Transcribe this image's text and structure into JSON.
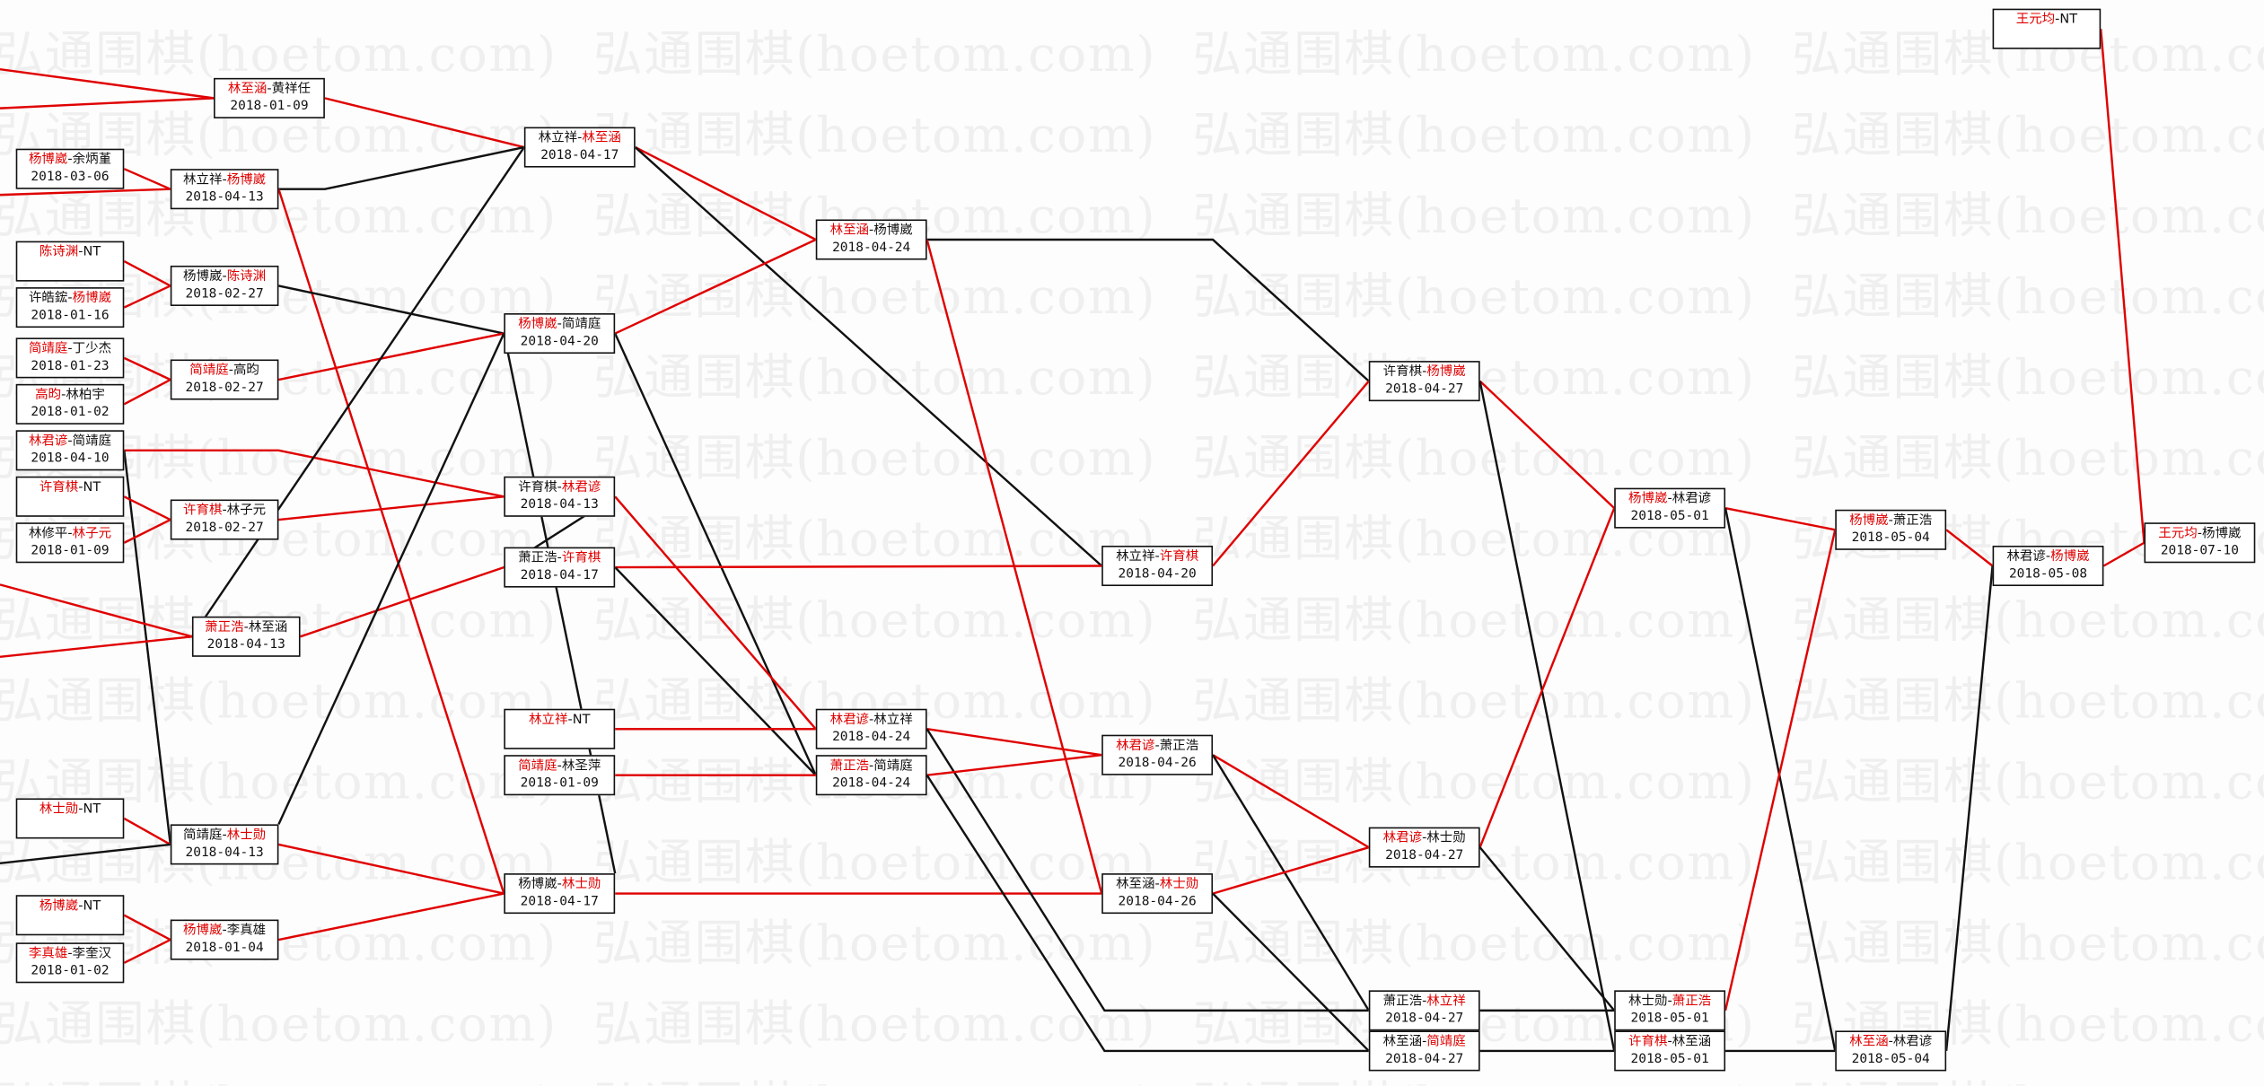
{
  "watermark": "弘通围棋(hoetom.com)",
  "colors": {
    "win": "#e00000",
    "loss": "#111111",
    "box_border": "#111111"
  },
  "nodes": [
    {
      "id": "A",
      "p1": "林至涵",
      "p2": "黄祥任",
      "date": "2018-01-09",
      "winner": 1
    },
    {
      "id": "B",
      "p1": "杨博崴",
      "p2": "余炳堇",
      "date": "2018-03-06",
      "winner": 1
    },
    {
      "id": "C",
      "p1": "林立祥",
      "p2": "杨博崴",
      "date": "2018-04-13",
      "winner": 2
    },
    {
      "id": "D",
      "p1": "林立祥",
      "p2": "林至涵",
      "date": "2018-04-17",
      "winner": 2
    },
    {
      "id": "E",
      "p1": "陈诗渊",
      "p2": "NT",
      "date": "",
      "winner": 1
    },
    {
      "id": "F",
      "p1": "许皓鋐",
      "p2": "杨博崴",
      "date": "2018-01-16",
      "winner": 2
    },
    {
      "id": "G",
      "p1": "杨博崴",
      "p2": "陈诗渊",
      "date": "2018-02-27",
      "winner": 2
    },
    {
      "id": "H",
      "p1": "杨博崴",
      "p2": "简靖庭",
      "date": "2018-04-20",
      "winner": 1
    },
    {
      "id": "J",
      "p1": "简靖庭",
      "p2": "丁少杰",
      "date": "2018-01-23",
      "winner": 1
    },
    {
      "id": "K",
      "p1": "高昀",
      "p2": "林柏宇",
      "date": "2018-01-02",
      "winner": 1
    },
    {
      "id": "I",
      "p1": "简靖庭",
      "p2": "高昀",
      "date": "2018-02-27",
      "winner": 1
    },
    {
      "id": "L",
      "p1": "林君谚",
      "p2": "简靖庭",
      "date": "2018-04-10",
      "winner": 1
    },
    {
      "id": "M",
      "p1": "许育棋",
      "p2": "NT",
      "date": "",
      "winner": 1
    },
    {
      "id": "N",
      "p1": "林修平",
      "p2": "林子元",
      "date": "2018-01-09",
      "winner": 2
    },
    {
      "id": "O",
      "p1": "许育棋",
      "p2": "林子元",
      "date": "2018-02-27",
      "winner": 1
    },
    {
      "id": "P",
      "p1": "许育棋",
      "p2": "林君谚",
      "date": "2018-04-13",
      "winner": 2
    },
    {
      "id": "Q",
      "p1": "萧正浩",
      "p2": "许育棋",
      "date": "2018-04-17",
      "winner": 2
    },
    {
      "id": "R",
      "p1": "萧正浩",
      "p2": "林至涵",
      "date": "2018-04-13",
      "winner": 1
    },
    {
      "id": "Y",
      "p1": "林立祥",
      "p2": "NT",
      "date": "",
      "winner": 1
    },
    {
      "id": "Z",
      "p1": "简靖庭",
      "p2": "林圣萍",
      "date": "2018-01-09",
      "winner": 1
    },
    {
      "id": "S",
      "p1": "林士勋",
      "p2": "NT",
      "date": "",
      "winner": 1
    },
    {
      "id": "T",
      "p1": "简靖庭",
      "p2": "林士勋",
      "date": "2018-04-13",
      "winner": 2
    },
    {
      "id": "U",
      "p1": "杨博崴",
      "p2": "NT",
      "date": "",
      "winner": 1
    },
    {
      "id": "X",
      "p1": "杨博崴",
      "p2": "林士勋",
      "date": "2018-04-17",
      "winner": 2
    },
    {
      "id": "W",
      "p1": "杨博崴",
      "p2": "李真雄",
      "date": "2018-01-04",
      "winner": 1
    },
    {
      "id": "V",
      "p1": "李真雄",
      "p2": "李奎汉",
      "date": "2018-01-02",
      "winner": 1
    },
    {
      "id": "ZA",
      "p1": "林至涵",
      "p2": "杨博崴",
      "date": "2018-04-24",
      "winner": 1
    },
    {
      "id": "Z1",
      "p1": "林君谚",
      "p2": "林立祥",
      "date": "2018-04-24",
      "winner": 1
    },
    {
      "id": "Z2",
      "p1": "萧正浩",
      "p2": "简靖庭",
      "date": "2018-04-24",
      "winner": 1
    },
    {
      "id": "ZB",
      "p1": "林立祥",
      "p2": "许育棋",
      "date": "2018-04-20",
      "winner": 2
    },
    {
      "id": "AA",
      "p1": "林君谚",
      "p2": "萧正浩",
      "date": "2018-04-26",
      "winner": 1
    },
    {
      "id": "AB",
      "p1": "林至涵",
      "p2": "林士勋",
      "date": "2018-04-26",
      "winner": 2
    },
    {
      "id": "AC",
      "p1": "许育棋",
      "p2": "杨博崴",
      "date": "2018-04-27",
      "winner": 2
    },
    {
      "id": "AD",
      "p1": "林君谚",
      "p2": "林士勋",
      "date": "2018-04-27",
      "winner": 1
    },
    {
      "id": "AE",
      "p1": "萧正浩",
      "p2": "林立祥",
      "date": "2018-04-27",
      "winner": 2
    },
    {
      "id": "AF",
      "p1": "林至涵",
      "p2": "简靖庭",
      "date": "2018-04-27",
      "winner": 2
    },
    {
      "id": "AG",
      "p1": "杨博崴",
      "p2": "林君谚",
      "date": "2018-05-01",
      "winner": 1
    },
    {
      "id": "AH",
      "p1": "林士勋",
      "p2": "萧正浩",
      "date": "2018-05-01",
      "winner": 2
    },
    {
      "id": "AI",
      "p1": "许育棋",
      "p2": "林至涵",
      "date": "2018-05-01",
      "winner": 1
    },
    {
      "id": "AJ",
      "p1": "杨博崴",
      "p2": "萧正浩",
      "date": "2018-05-04",
      "winner": 1
    },
    {
      "id": "AK",
      "p1": "林至涵",
      "p2": "林君谚",
      "date": "2018-05-04",
      "winner": 1
    },
    {
      "id": "AL",
      "p1": "林君谚",
      "p2": "杨博崴",
      "date": "2018-05-08",
      "winner": 2
    },
    {
      "id": "AM",
      "p1": "王元均",
      "p2": "NT",
      "date": "",
      "winner": 1
    },
    {
      "id": "AN",
      "p1": "王元均",
      "p2": "杨博崴",
      "date": "2018-07-10",
      "winner": 1
    }
  ]
}
